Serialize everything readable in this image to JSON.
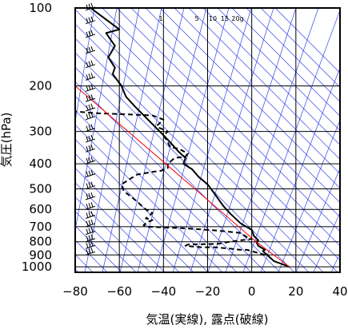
{
  "chart_data": {
    "type": "line",
    "title": "",
    "xlabel": "気温(実線), 露点(破線)",
    "ylabel": "気圧(hPa)",
    "xlim": [
      -80,
      40
    ],
    "ylim": [
      1050,
      100
    ],
    "y_scale": "log",
    "grid": true,
    "x_ticks": [
      -80,
      -60,
      -40,
      -20,
      0,
      20,
      40
    ],
    "y_ticks": [
      100,
      200,
      300,
      400,
      500,
      600,
      700,
      800,
      900,
      1000
    ],
    "mixing_ratio_labels": [
      "1",
      "5",
      "10",
      "15",
      "20g"
    ],
    "series": [
      {
        "line_style": "solid",
        "color": "#000000",
        "points": [
          [
            17,
            1000
          ],
          [
            10,
            950
          ],
          [
            7,
            900
          ],
          [
            5,
            870
          ],
          [
            6,
            860
          ],
          [
            3,
            830
          ],
          [
            2,
            800
          ],
          [
            3,
            790
          ],
          [
            1,
            760
          ],
          [
            0,
            720
          ],
          [
            -5,
            680
          ],
          [
            -10,
            620
          ],
          [
            -13,
            580
          ],
          [
            -17,
            520
          ],
          [
            -20,
            480
          ],
          [
            -24,
            450
          ],
          [
            -26,
            430
          ],
          [
            -27,
            420
          ],
          [
            -31,
            400
          ],
          [
            -30,
            380
          ],
          [
            -33,
            360
          ],
          [
            -37,
            330
          ],
          [
            -40,
            310
          ],
          [
            -47,
            270
          ],
          [
            -53,
            240
          ],
          [
            -57,
            220
          ],
          [
            -59,
            200
          ],
          [
            -63,
            180
          ],
          [
            -62,
            170
          ],
          [
            -65,
            155
          ],
          [
            -62,
            140
          ],
          [
            -66,
            125
          ],
          [
            -60,
            121
          ],
          [
            -73,
            100
          ]
        ]
      },
      {
        "line_style": "dashed",
        "color": "#000000",
        "points": [
          [
            6,
            900
          ],
          [
            0,
            870
          ],
          [
            -2,
            860
          ],
          [
            -5,
            860
          ],
          [
            -10,
            850
          ],
          [
            -17,
            840
          ],
          [
            -23,
            840
          ],
          [
            -30,
            830
          ],
          [
            -29,
            820
          ],
          [
            -15,
            815
          ],
          [
            -10,
            800
          ],
          [
            -5,
            790
          ],
          [
            0,
            780
          ],
          [
            -2,
            770
          ],
          [
            -5,
            740
          ],
          [
            -15,
            725
          ],
          [
            -30,
            710
          ],
          [
            -48,
            700
          ],
          [
            -49,
            690
          ],
          [
            -47,
            670
          ],
          [
            -45,
            660
          ],
          [
            -48,
            650
          ],
          [
            -45,
            620
          ],
          [
            -48,
            600
          ],
          [
            -53,
            550
          ],
          [
            -58,
            510
          ],
          [
            -59,
            480
          ],
          [
            -52,
            440
          ],
          [
            -45,
            430
          ],
          [
            -41,
            425
          ],
          [
            -38,
            415
          ],
          [
            -38,
            400
          ],
          [
            -35,
            380
          ],
          [
            -30,
            375
          ],
          [
            -29,
            365
          ],
          [
            -33,
            350
          ],
          [
            -37,
            345
          ],
          [
            -38,
            330
          ],
          [
            -40,
            310
          ],
          [
            -38,
            300
          ],
          [
            -42,
            290
          ],
          [
            -43,
            285
          ],
          [
            -40,
            270
          ],
          [
            -45,
            260
          ],
          [
            -70,
            255
          ],
          [
            -83,
            250
          ]
        ]
      },
      {
        "name": "",
        "line_style": "solid",
        "color": "#ff0000",
        "points": [
          [
            17,
            1000
          ],
          [
            2,
            800
          ],
          [
            -80,
            200
          ]
        ]
      }
    ]
  }
}
